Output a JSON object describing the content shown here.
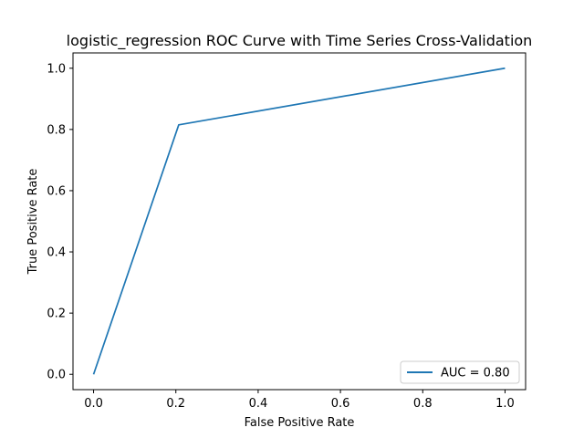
{
  "chart_data": {
    "type": "line",
    "title": "logistic_regression ROC Curve with Time Series Cross-Validation",
    "xlabel": "False Positive Rate",
    "ylabel": "True Positive Rate",
    "xlim": [
      -0.05,
      1.05
    ],
    "ylim": [
      -0.05,
      1.05
    ],
    "xticks": [
      0.0,
      0.2,
      0.4,
      0.6,
      0.8,
      1.0
    ],
    "yticks": [
      0.0,
      0.2,
      0.4,
      0.6,
      0.8,
      1.0
    ],
    "xtick_labels": [
      "0.0",
      "0.2",
      "0.4",
      "0.6",
      "0.8",
      "1.0"
    ],
    "ytick_labels": [
      "0.0",
      "0.2",
      "0.4",
      "0.6",
      "0.8",
      "1.0"
    ],
    "grid": false,
    "legend_position": "lower right",
    "series": [
      {
        "name": "AUC = 0.80",
        "color": "#1f77b4",
        "x": [
          0.0,
          0.207,
          1.0
        ],
        "y": [
          0.0,
          0.815,
          1.0
        ]
      }
    ]
  }
}
